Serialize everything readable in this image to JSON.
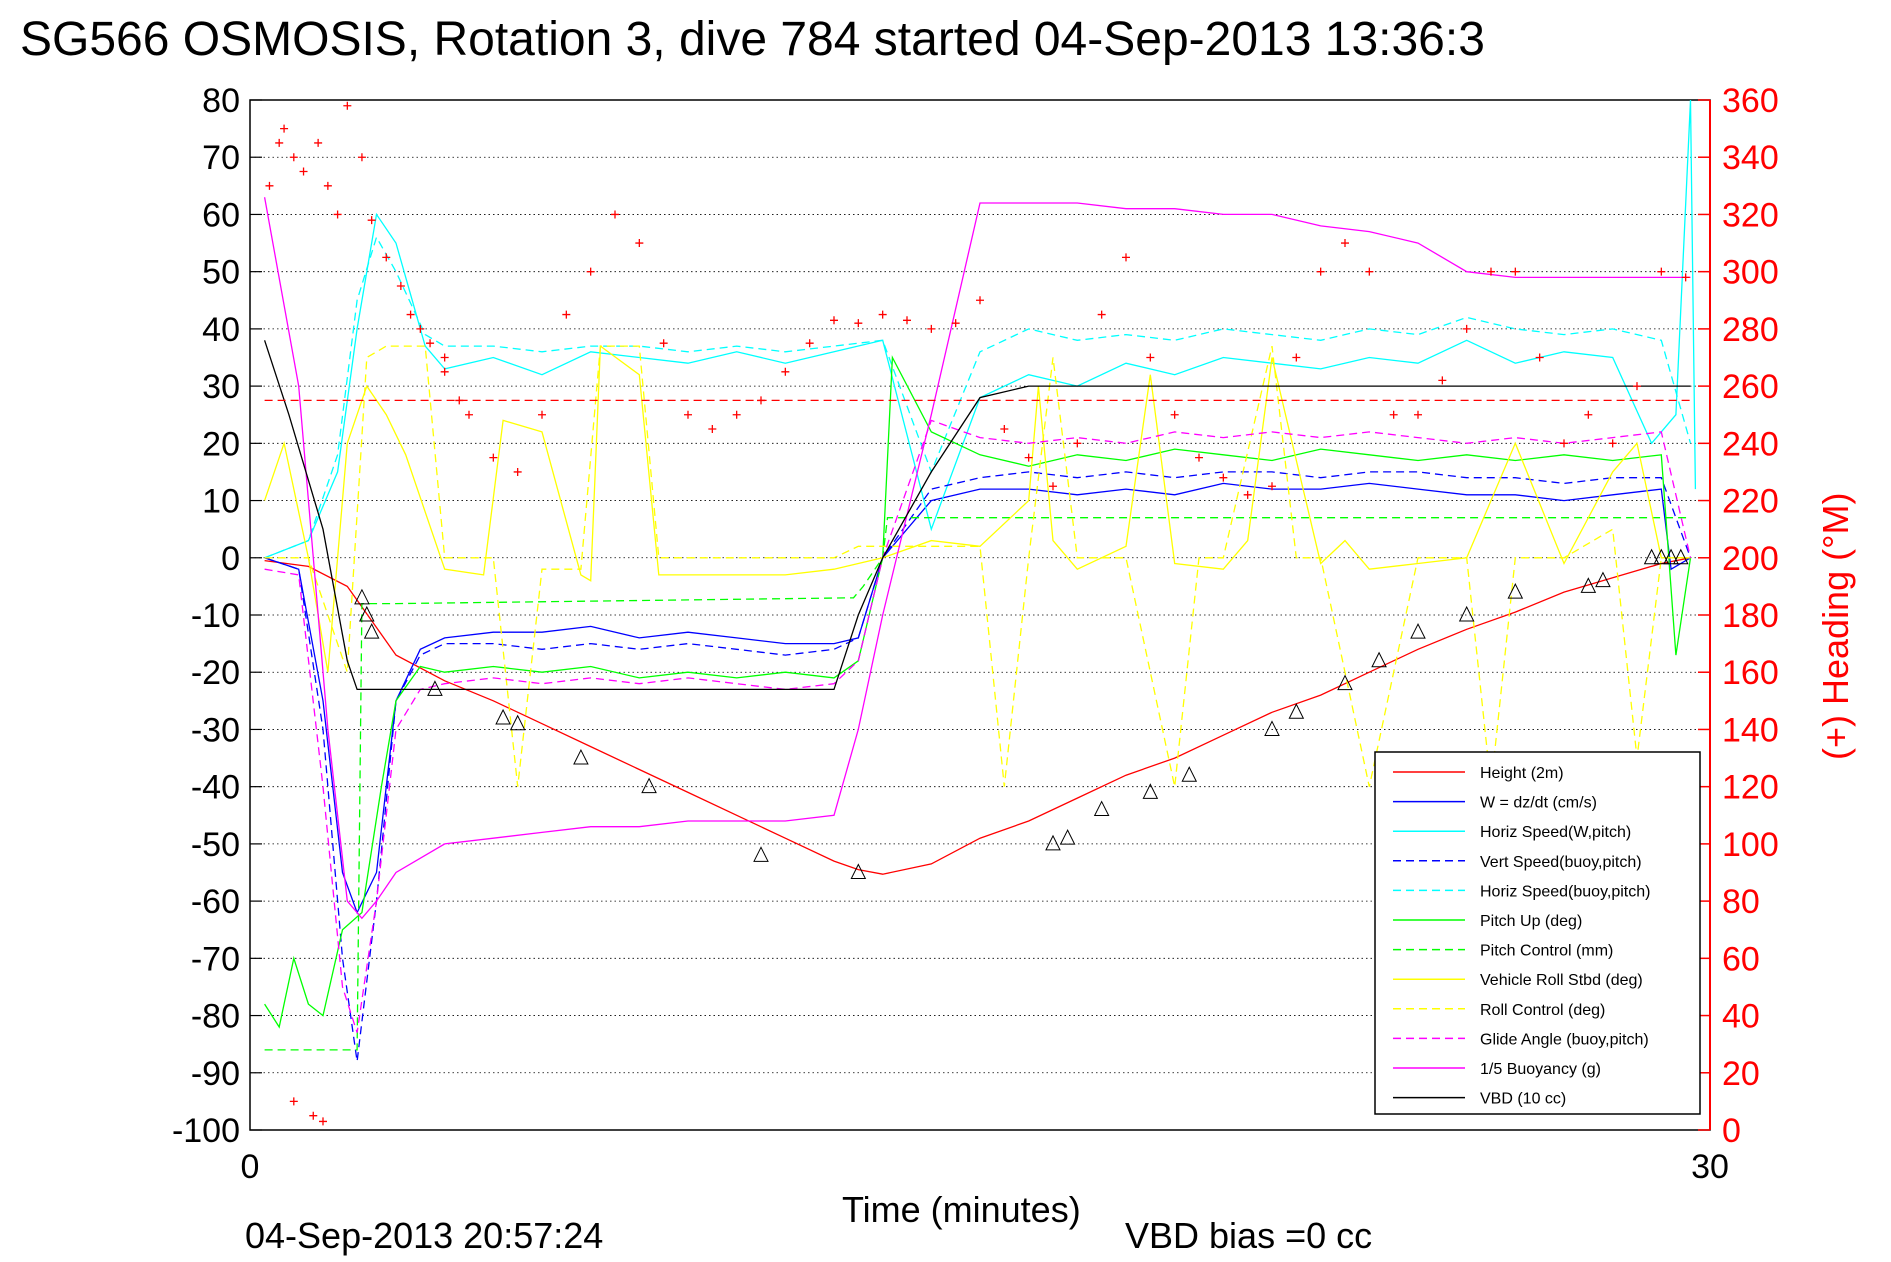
{
  "chart_data": {
    "type": "line",
    "title": "SG566 OSMOSIS, Rotation 3, dive 784 started 04-Sep-2013 13:36:3",
    "xlabel": "Time (minutes)",
    "ylabel": "",
    "ylabel_right": "(+) Heading (°M)",
    "xlim": [
      0,
      30
    ],
    "ylim": [
      -100,
      80
    ],
    "ylim_right": [
      0,
      360
    ],
    "x_ticks": [
      "0",
      "30"
    ],
    "y_ticks": [
      "80",
      "70",
      "60",
      "50",
      "40",
      "30",
      "20",
      "10",
      "0",
      "-10",
      "-20",
      "-30",
      "-40",
      "-50",
      "-60",
      "-70",
      "-80",
      "-90",
      "-100"
    ],
    "y_right_ticks": [
      "360",
      "340",
      "320",
      "300",
      "280",
      "260",
      "240",
      "220",
      "200",
      "180",
      "160",
      "140",
      "120",
      "100",
      "80",
      "60",
      "40",
      "20",
      "0"
    ],
    "grid": "horizontal dotted",
    "legend_position": "bottom-right",
    "footer_left": "04-Sep-2013 20:57:24",
    "footer_right": "VBD bias =0 cc",
    "colors": {
      "red": "#ff0000",
      "blue": "#0000ff",
      "cyan": "#00ffff",
      "green": "#00ff00",
      "yellow": "#ffff00",
      "magenta": "#ff00ff",
      "black": "#000000"
    },
    "series": [
      {
        "name": "Height (2m)",
        "color": "#ff0000",
        "dash": "solid",
        "x": [
          0.3,
          1.2,
          2.0,
          2.5,
          3.0,
          4.0,
          5.0,
          6.0,
          7.0,
          8.0,
          9.0,
          10.0,
          11.0,
          12.0,
          12.5,
          13.0,
          14.0,
          15.0,
          16.0,
          17.0,
          18.0,
          19.0,
          20.0,
          21.0,
          22.0,
          23.0,
          24.0,
          25.0,
          26.0,
          27.0,
          28.0,
          29.0,
          29.6
        ],
        "y": [
          -0.5,
          -1.5,
          -5,
          -11,
          -17,
          -21.5,
          -25,
          -29,
          -33,
          -37,
          -41,
          -45,
          -49,
          -53,
          -54.5,
          -55.3,
          -53.5,
          -49,
          -46,
          -42,
          -38,
          -35,
          -31,
          -27,
          -24,
          -20,
          -16,
          -12.5,
          -9.5,
          -6,
          -3.5,
          -1,
          0
        ]
      },
      {
        "name": "W = dz/dt (cm/s)",
        "color": "#0000ff",
        "dash": "solid",
        "x": [
          0.3,
          1.0,
          1.5,
          1.9,
          2.2,
          2.6,
          3.0,
          3.5,
          4.0,
          5.0,
          6.0,
          7.0,
          8.0,
          9.0,
          10.0,
          11.0,
          12.0,
          12.5,
          13.0,
          14.0,
          15.0,
          16.0,
          17.0,
          18.0,
          19.0,
          20.0,
          21.0,
          22.0,
          23.0,
          24.0,
          25.0,
          26.0,
          27.0,
          28.0,
          29.0,
          29.2,
          29.6
        ],
        "y": [
          0,
          -2,
          -25,
          -55,
          -62,
          -55,
          -25,
          -16,
          -14,
          -13,
          -13,
          -12,
          -14,
          -13,
          -14,
          -15,
          -15,
          -14,
          0,
          10,
          12,
          12,
          11,
          12,
          11,
          13,
          12,
          12,
          13,
          12,
          11,
          11,
          10,
          11,
          12,
          -2,
          0
        ]
      },
      {
        "name": "Horiz Speed(W,pitch)",
        "color": "#00ffff",
        "dash": "solid",
        "x": [
          0.3,
          1.2,
          1.8,
          2.2,
          2.6,
          3.0,
          3.6,
          4.0,
          5.0,
          6.0,
          7.0,
          8.0,
          9.0,
          10.0,
          11.0,
          12.0,
          13.0,
          14.0,
          15.0,
          16.0,
          17.0,
          18.0,
          19.0,
          20.0,
          21.0,
          22.0,
          23.0,
          24.0,
          25.0,
          26.0,
          27.0,
          28.0,
          28.8,
          29.3,
          29.6,
          29.7
        ],
        "y": [
          0,
          3,
          15,
          40,
          60,
          55,
          37,
          33,
          35,
          32,
          36,
          35,
          34,
          36,
          34,
          36,
          38,
          5,
          28,
          32,
          30,
          34,
          32,
          35,
          34,
          33,
          35,
          34,
          38,
          34,
          36,
          35,
          20,
          25,
          80,
          12
        ]
      },
      {
        "name": "Vert Speed(buoy,pitch)",
        "color": "#0000ff",
        "dash": "dashed",
        "x": [
          0.3,
          1.0,
          1.5,
          1.9,
          2.2,
          2.6,
          3.0,
          3.5,
          4.0,
          5.0,
          6.0,
          7.0,
          8.0,
          9.0,
          10.0,
          11.0,
          12.0,
          12.5,
          13.0,
          14.0,
          15.0,
          16.0,
          17.0,
          18.0,
          19.0,
          20.0,
          21.0,
          22.0,
          23.0,
          24.0,
          25.0,
          26.0,
          27.0,
          28.0,
          29.0,
          29.6
        ],
        "y": [
          0,
          -2,
          -30,
          -70,
          -88,
          -60,
          -25,
          -17,
          -15,
          -15,
          -16,
          -15,
          -16,
          -15,
          -16,
          -17,
          -16,
          -14,
          0,
          12,
          14,
          15,
          14,
          15,
          14,
          15,
          15,
          14,
          15,
          15,
          14,
          14,
          13,
          14,
          14,
          0
        ]
      },
      {
        "name": "Horiz Speed(buoy,pitch)",
        "color": "#00ffff",
        "dash": "dashed",
        "x": [
          0.3,
          1.2,
          1.8,
          2.2,
          2.6,
          3.0,
          3.6,
          4.0,
          5.0,
          6.0,
          7.0,
          8.0,
          9.0,
          10.0,
          11.0,
          12.0,
          13.0,
          14.0,
          15.0,
          16.0,
          17.0,
          18.0,
          19.0,
          20.0,
          21.0,
          22.0,
          23.0,
          24.0,
          25.0,
          26.0,
          27.0,
          28.0,
          29.0,
          29.6
        ],
        "y": [
          0,
          3,
          18,
          45,
          56,
          50,
          39,
          37,
          37,
          36,
          37,
          37,
          36,
          37,
          36,
          37,
          38,
          15,
          36,
          40,
          38,
          39,
          38,
          40,
          39,
          38,
          40,
          39,
          42,
          40,
          39,
          40,
          38,
          20
        ]
      },
      {
        "name": "Pitch Up (deg)",
        "color": "#00ff00",
        "dash": "solid",
        "x": [
          0.3,
          0.6,
          0.9,
          1.2,
          1.5,
          1.9,
          2.3,
          2.7,
          3.0,
          3.5,
          4.0,
          5.0,
          6.0,
          7.0,
          8.0,
          9.0,
          10.0,
          11.0,
          12.0,
          12.5,
          13.0,
          13.2,
          14.0,
          15.0,
          16.0,
          17.0,
          18.0,
          19.0,
          20.0,
          21.0,
          22.0,
          23.0,
          24.0,
          25.0,
          26.0,
          27.0,
          28.0,
          29.0,
          29.3,
          29.6
        ],
        "y": [
          -78,
          -82,
          -70,
          -78,
          -80,
          -65,
          -62,
          -40,
          -25,
          -19,
          -20,
          -19,
          -20,
          -19,
          -21,
          -20,
          -21,
          -20,
          -21,
          -18,
          0,
          35,
          22,
          18,
          16,
          18,
          17,
          19,
          18,
          17,
          19,
          18,
          17,
          18,
          17,
          18,
          17,
          18,
          -17,
          0
        ]
      },
      {
        "name": "Pitch Control (mm)",
        "color": "#00ff00",
        "dash": "dashed",
        "x": [
          0.3,
          2.2,
          2.3,
          3.0,
          12.4,
          12.6,
          13.0,
          13.1,
          14.0,
          29.6
        ],
        "y": [
          -86,
          -86,
          -8,
          -8,
          -7,
          -5,
          0,
          7,
          7,
          7
        ]
      },
      {
        "name": "Vehicle Roll Stbd (deg)",
        "color": "#ffff00",
        "dash": "solid",
        "x": [
          0.3,
          0.7,
          1.2,
          1.6,
          2.0,
          2.4,
          2.8,
          3.2,
          4.0,
          4.8,
          5.2,
          6.0,
          6.8,
          7.0,
          7.2,
          8.0,
          8.4,
          8.6,
          9.0,
          10.0,
          11.0,
          12.0,
          12.5,
          13.0,
          14.0,
          15.0,
          16.0,
          16.2,
          16.5,
          17.0,
          18.0,
          18.5,
          19.0,
          20.0,
          20.5,
          21.0,
          22.0,
          22.5,
          23.0,
          24.0,
          25.0,
          26.0,
          27.0,
          28.0,
          28.5,
          29.0,
          29.6
        ],
        "y": [
          10,
          20,
          0,
          -20,
          20,
          30,
          25,
          18,
          -2,
          -3,
          24,
          22,
          -3,
          -4,
          37,
          32,
          -3,
          -3,
          -3,
          -3,
          -3,
          -2,
          -1,
          0,
          3,
          2,
          10,
          30,
          3,
          -2,
          2,
          32,
          -1,
          -2,
          3,
          35,
          -1,
          3,
          -2,
          -1,
          0,
          20,
          -1,
          15,
          20,
          0,
          0
        ]
      },
      {
        "name": "Roll Control (deg)",
        "color": "#ffff00",
        "dash": "dashed",
        "x": [
          0.3,
          1.2,
          2.0,
          2.4,
          2.8,
          3.6,
          4.0,
          5.0,
          5.5,
          6.0,
          6.8,
          7.2,
          8.0,
          8.4,
          9.0,
          11.0,
          12.0,
          12.5,
          13.0,
          14.0,
          15.0,
          15.5,
          16.0,
          16.5,
          17.0,
          18.0,
          19.0,
          19.5,
          20.0,
          21.0,
          21.5,
          22.0,
          23.0,
          24.0,
          25.0,
          25.5,
          26.0,
          27.0,
          28.0,
          28.5,
          29.0,
          29.6
        ],
        "y": [
          0,
          0,
          -20,
          35,
          37,
          37,
          0,
          0,
          -40,
          -2,
          -2,
          37,
          37,
          0,
          0,
          0,
          0,
          2,
          2,
          2,
          2,
          -40,
          0,
          35,
          0,
          0,
          -40,
          0,
          0,
          37,
          0,
          0,
          -40,
          0,
          0,
          -40,
          0,
          0,
          5,
          -35,
          0,
          0
        ]
      },
      {
        "name": "Glide Angle (buoy,pitch)",
        "color": "#ff00ff",
        "dash": "dashed",
        "x": [
          0.3,
          1.0,
          1.5,
          1.9,
          2.2,
          2.6,
          3.0,
          3.5,
          4.0,
          5.0,
          6.0,
          7.0,
          8.0,
          9.0,
          10.0,
          11.0,
          12.0,
          12.5,
          13.0,
          14.0,
          15.0,
          16.0,
          17.0,
          18.0,
          19.0,
          20.0,
          21.0,
          22.0,
          23.0,
          24.0,
          25.0,
          26.0,
          27.0,
          28.0,
          29.0,
          29.6
        ],
        "y": [
          -2,
          -3,
          -40,
          -75,
          -83,
          -60,
          -30,
          -23,
          -22,
          -21,
          -22,
          -21,
          -22,
          -21,
          -22,
          -23,
          -22,
          -18,
          0,
          24,
          21,
          20,
          21,
          20,
          22,
          21,
          22,
          21,
          22,
          21,
          20,
          21,
          20,
          21,
          22,
          0
        ]
      },
      {
        "name": "1/5 Buoyancy (g)",
        "color": "#ff00ff",
        "dash": "solid",
        "x": [
          0.3,
          1.0,
          1.6,
          2.0,
          2.3,
          2.6,
          3.0,
          4.0,
          5.0,
          6.0,
          7.0,
          8.0,
          9.0,
          10.0,
          11.0,
          12.0,
          12.5,
          13.0,
          14.0,
          15.0,
          16.0,
          17.0,
          18.0,
          19.0,
          20.0,
          21.0,
          22.0,
          23.0,
          24.0,
          25.0,
          26.0,
          27.0,
          28.0,
          29.0,
          29.6
        ],
        "y": [
          63,
          30,
          -30,
          -60,
          -63,
          -60,
          -55,
          -50,
          -49,
          -48,
          -47,
          -47,
          -46,
          -46,
          -46,
          -45,
          -30,
          -10,
          25,
          62,
          62,
          62,
          61,
          61,
          60,
          60,
          58,
          57,
          55,
          50,
          49,
          49,
          49,
          49,
          49
        ]
      },
      {
        "name": "VBD (10 cc)",
        "color": "#000000",
        "dash": "solid",
        "x": [
          0.3,
          0.8,
          1.5,
          2.0,
          2.2,
          3.0,
          5.0,
          8.0,
          10.0,
          11.0,
          12.0,
          12.5,
          13.0,
          14.0,
          15.0,
          16.0,
          20.0,
          25.0,
          29.6
        ],
        "y": [
          38,
          25,
          5,
          -18,
          -23,
          -23,
          -23,
          -23,
          -23,
          -23,
          -23,
          -10,
          0,
          15,
          28,
          30,
          30,
          30,
          30
        ]
      },
      {
        "name": "",
        "color": "#ff0000",
        "dash": "dashed",
        "x": [
          0.3,
          29.6
        ],
        "y": [
          27.5,
          27.5
        ]
      }
    ],
    "heading_points": {
      "name": "(+) Heading (°M)",
      "color": "#ff0000",
      "x": [
        0.4,
        0.6,
        0.7,
        0.9,
        1.1,
        1.4,
        1.6,
        1.8,
        2.0,
        2.3,
        2.5,
        2.8,
        3.1,
        3.3,
        3.5,
        3.7,
        4.0,
        4.3,
        0.9,
        1.3,
        1.5,
        4.0,
        4.5,
        5.0,
        5.5,
        6.0,
        6.5,
        7.0,
        7.5,
        8.0,
        8.5,
        9.0,
        9.5,
        10.0,
        10.5,
        11.0,
        11.5,
        12.0,
        12.5,
        13.0,
        13.5,
        14.0,
        14.5,
        15.0,
        15.5,
        16.0,
        16.5,
        17.0,
        17.5,
        18.0,
        18.5,
        19.0,
        19.5,
        20.0,
        20.5,
        21.0,
        21.5,
        22.0,
        22.5,
        23.0,
        23.5,
        24.0,
        24.5,
        25.0,
        25.5,
        26.0,
        26.5,
        27.0,
        27.5,
        28.0,
        28.5,
        29.0,
        29.5
      ],
      "y": [
        330,
        345,
        350,
        340,
        335,
        345,
        330,
        320,
        358,
        340,
        318,
        305,
        295,
        285,
        280,
        275,
        265,
        255,
        10,
        5,
        3,
        270,
        250,
        235,
        230,
        250,
        285,
        300,
        320,
        310,
        275,
        250,
        245,
        250,
        255,
        265,
        275,
        283,
        282,
        285,
        283,
        280,
        282,
        290,
        245,
        235,
        225,
        240,
        285,
        305,
        270,
        250,
        235,
        228,
        222,
        225,
        270,
        300,
        310,
        300,
        250,
        250,
        262,
        280,
        300,
        300,
        270,
        240,
        250,
        240,
        260,
        300,
        298
      ]
    },
    "markers": {
      "x": [
        2.3,
        2.4,
        2.5,
        3.8,
        5.2,
        5.5,
        6.8,
        8.2,
        10.5,
        12.5,
        16.5,
        16.8,
        17.5,
        18.5,
        19.3,
        21.0,
        21.5,
        22.5,
        23.2,
        24.0,
        25.0,
        26.0,
        27.5,
        27.8,
        28.8,
        29.0,
        29.2,
        29.4
      ],
      "y": [
        -7,
        -10,
        -13,
        -23,
        -28,
        -29,
        -35,
        -40,
        -52,
        -55,
        -50,
        -49,
        -44,
        -41,
        -38,
        -30,
        -27,
        -22,
        -18,
        -13,
        -10,
        -6,
        -5,
        -4,
        0,
        0,
        0,
        0
      ]
    }
  }
}
